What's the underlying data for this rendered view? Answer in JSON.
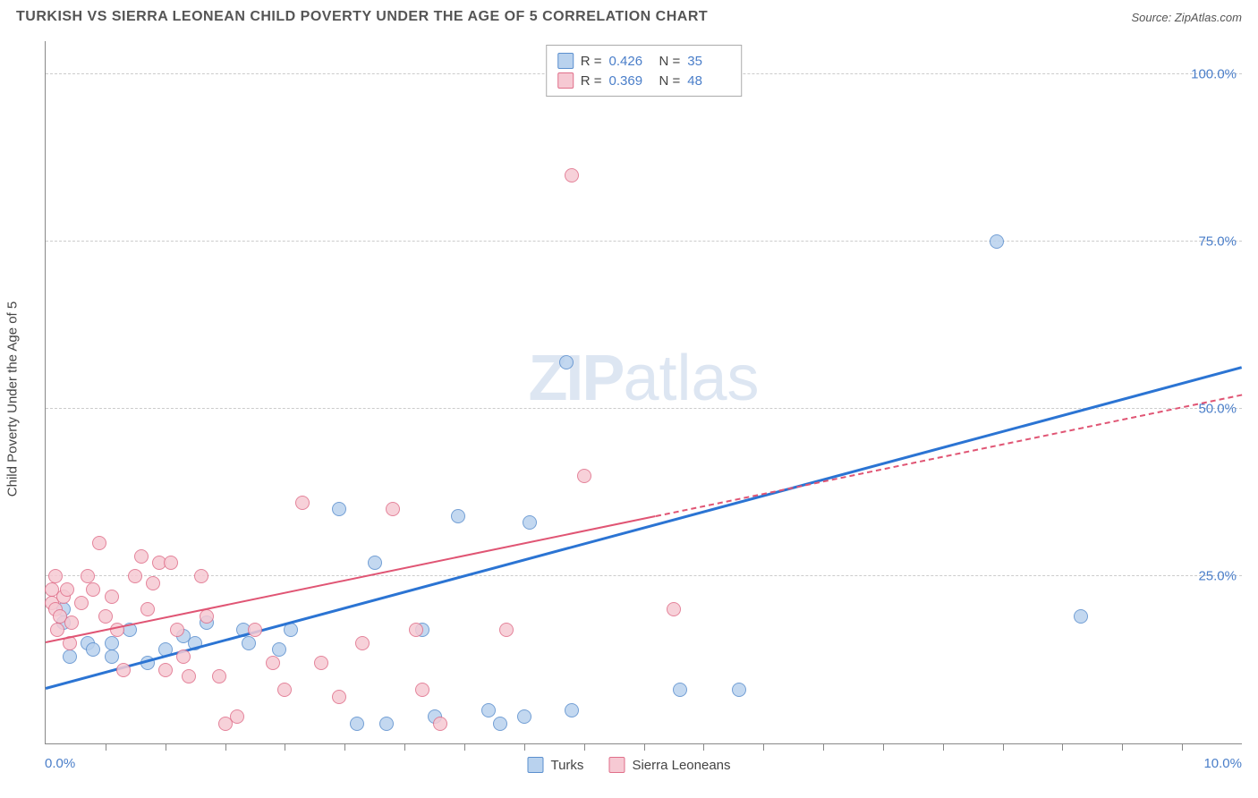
{
  "header": {
    "title": "TURKISH VS SIERRA LEONEAN CHILD POVERTY UNDER THE AGE OF 5 CORRELATION CHART",
    "source_prefix": "Source: ",
    "source_name": "ZipAtlas.com"
  },
  "watermark": {
    "zip": "ZIP",
    "atlas": "atlas"
  },
  "chart": {
    "type": "scatter",
    "background_color": "#ffffff",
    "grid_color": "#cccccc",
    "axis_color": "#888888",
    "tick_label_color": "#4a7ec9",
    "axis_label_color": "#444444",
    "label_fontsize": 15,
    "title_fontsize": 16,
    "xlim": [
      0,
      10
    ],
    "ylim": [
      0,
      105
    ],
    "yaxis": {
      "label": "Child Poverty Under the Age of 5",
      "ticks": [
        25,
        50,
        75,
        100
      ],
      "tick_labels": [
        "25.0%",
        "50.0%",
        "75.0%",
        "100.0%"
      ]
    },
    "xaxis": {
      "min_label": "0.0%",
      "max_label": "10.0%",
      "tick_positions": [
        0.5,
        1.0,
        1.5,
        2.0,
        2.5,
        3.0,
        3.5,
        4.0,
        4.5,
        5.0,
        5.5,
        6.0,
        6.5,
        7.0,
        7.5,
        8.0,
        8.5,
        9.0,
        9.5
      ]
    },
    "series": [
      {
        "key": "turks",
        "name": "Turks",
        "color_fill": "#b9d2ee",
        "color_stroke": "#5b8fce",
        "marker_size": 16,
        "marker_opacity": 0.85,
        "r_value": "0.426",
        "n_value": "35",
        "trend": {
          "color": "#2b74d3",
          "width": 3,
          "x1": 0.0,
          "y1": 8.0,
          "x2": 10.0,
          "y2": 56.0,
          "solid_until_x": 10.0
        },
        "points": [
          {
            "x": 0.15,
            "y": 18
          },
          {
            "x": 0.15,
            "y": 20
          },
          {
            "x": 0.2,
            "y": 13
          },
          {
            "x": 0.35,
            "y": 15
          },
          {
            "x": 0.4,
            "y": 14
          },
          {
            "x": 0.55,
            "y": 13
          },
          {
            "x": 0.55,
            "y": 15
          },
          {
            "x": 0.7,
            "y": 17
          },
          {
            "x": 0.85,
            "y": 12
          },
          {
            "x": 1.0,
            "y": 14
          },
          {
            "x": 1.15,
            "y": 16
          },
          {
            "x": 1.25,
            "y": 15
          },
          {
            "x": 1.35,
            "y": 18
          },
          {
            "x": 1.65,
            "y": 17
          },
          {
            "x": 1.7,
            "y": 15
          },
          {
            "x": 1.95,
            "y": 14
          },
          {
            "x": 2.05,
            "y": 17
          },
          {
            "x": 2.45,
            "y": 35
          },
          {
            "x": 2.6,
            "y": 3
          },
          {
            "x": 2.75,
            "y": 27
          },
          {
            "x": 2.85,
            "y": 3
          },
          {
            "x": 3.15,
            "y": 17
          },
          {
            "x": 3.25,
            "y": 4
          },
          {
            "x": 3.45,
            "y": 34
          },
          {
            "x": 3.7,
            "y": 5
          },
          {
            "x": 3.8,
            "y": 3
          },
          {
            "x": 4.0,
            "y": 4
          },
          {
            "x": 4.05,
            "y": 33
          },
          {
            "x": 4.35,
            "y": 57
          },
          {
            "x": 4.4,
            "y": 5
          },
          {
            "x": 5.3,
            "y": 8
          },
          {
            "x": 5.75,
            "y": 102
          },
          {
            "x": 5.8,
            "y": 8
          },
          {
            "x": 7.95,
            "y": 75
          },
          {
            "x": 8.65,
            "y": 19
          }
        ]
      },
      {
        "key": "sierra",
        "name": "Sierra Leoneans",
        "color_fill": "#f6c9d3",
        "color_stroke": "#e06f8a",
        "marker_size": 16,
        "marker_opacity": 0.85,
        "r_value": "0.369",
        "n_value": "48",
        "trend": {
          "color": "#e05574",
          "width": 2,
          "x1": 0.0,
          "y1": 15.0,
          "x2": 10.0,
          "y2": 52.0,
          "solid_until_x": 5.1
        },
        "points": [
          {
            "x": 0.05,
            "y": 21
          },
          {
            "x": 0.05,
            "y": 23
          },
          {
            "x": 0.08,
            "y": 20
          },
          {
            "x": 0.08,
            "y": 25
          },
          {
            "x": 0.1,
            "y": 17
          },
          {
            "x": 0.12,
            "y": 19
          },
          {
            "x": 0.15,
            "y": 22
          },
          {
            "x": 0.18,
            "y": 23
          },
          {
            "x": 0.2,
            "y": 15
          },
          {
            "x": 0.22,
            "y": 18
          },
          {
            "x": 0.3,
            "y": 21
          },
          {
            "x": 0.35,
            "y": 25
          },
          {
            "x": 0.4,
            "y": 23
          },
          {
            "x": 0.45,
            "y": 30
          },
          {
            "x": 0.5,
            "y": 19
          },
          {
            "x": 0.55,
            "y": 22
          },
          {
            "x": 0.6,
            "y": 17
          },
          {
            "x": 0.65,
            "y": 11
          },
          {
            "x": 0.75,
            "y": 25
          },
          {
            "x": 0.8,
            "y": 28
          },
          {
            "x": 0.85,
            "y": 20
          },
          {
            "x": 0.9,
            "y": 24
          },
          {
            "x": 0.95,
            "y": 27
          },
          {
            "x": 1.0,
            "y": 11
          },
          {
            "x": 1.05,
            "y": 27
          },
          {
            "x": 1.1,
            "y": 17
          },
          {
            "x": 1.15,
            "y": 13
          },
          {
            "x": 1.2,
            "y": 10
          },
          {
            "x": 1.3,
            "y": 25
          },
          {
            "x": 1.35,
            "y": 19
          },
          {
            "x": 1.45,
            "y": 10
          },
          {
            "x": 1.5,
            "y": 3
          },
          {
            "x": 1.6,
            "y": 4
          },
          {
            "x": 1.75,
            "y": 17
          },
          {
            "x": 1.9,
            "y": 12
          },
          {
            "x": 2.0,
            "y": 8
          },
          {
            "x": 2.15,
            "y": 36
          },
          {
            "x": 2.3,
            "y": 12
          },
          {
            "x": 2.45,
            "y": 7
          },
          {
            "x": 2.65,
            "y": 15
          },
          {
            "x": 2.9,
            "y": 35
          },
          {
            "x": 3.1,
            "y": 17
          },
          {
            "x": 3.15,
            "y": 8
          },
          {
            "x": 3.3,
            "y": 3
          },
          {
            "x": 3.85,
            "y": 17
          },
          {
            "x": 4.4,
            "y": 85
          },
          {
            "x": 4.5,
            "y": 40
          },
          {
            "x": 5.25,
            "y": 20
          }
        ]
      }
    ],
    "stats_box": {
      "r_label": "R =",
      "n_label": "N ="
    },
    "legend": {
      "position": "bottom-center"
    }
  }
}
